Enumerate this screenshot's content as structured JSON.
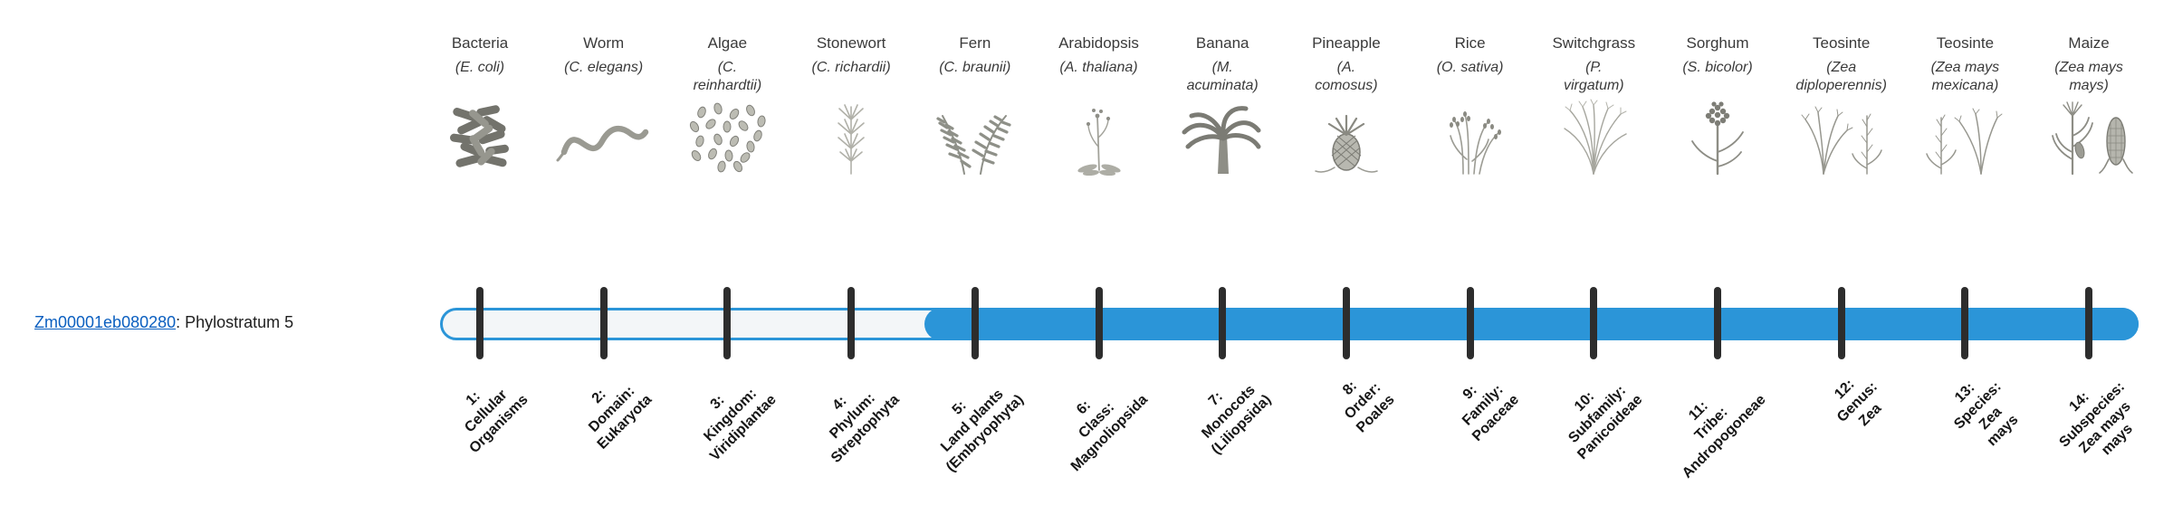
{
  "gene": {
    "id": "Zm00001eb080280",
    "suffix": ": Phylostratum 5"
  },
  "colors": {
    "bar_fill": "#2b95d8",
    "bar_outline": "#2b95d8",
    "bar_hollow": "#f3f6f8",
    "tick": "#2d2d2d",
    "link": "#0b5fc0"
  },
  "bar": {
    "fill_start_percent": 28.5
  },
  "organisms": [
    {
      "name": "Bacteria",
      "sci": "(E. coli)",
      "stratum": "1:\nCellular\nOrganisms",
      "icon": "bacteria"
    },
    {
      "name": "Worm",
      "sci": "(C. elegans)",
      "stratum": "2:\nDomain:\nEukaryota",
      "icon": "worm"
    },
    {
      "name": "Algae",
      "sci": "(C.\nreinhardtii)",
      "stratum": "3:\nKingdom:\nViridiplantae",
      "icon": "algae"
    },
    {
      "name": "Stonewort",
      "sci": "(C. richardii)",
      "stratum": "4:\nPhylum:\nStreptophyta",
      "icon": "stonewort"
    },
    {
      "name": "Fern",
      "sci": "(C. braunii)",
      "stratum": "5:\nLand plants\n(Embryophyta)",
      "icon": "fern"
    },
    {
      "name": "Arabidopsis",
      "sci": "(A. thaliana)",
      "stratum": "6:\nClass:\nMagnoliopsida",
      "icon": "arabidopsis"
    },
    {
      "name": "Banana",
      "sci": "(M.\nacuminata)",
      "stratum": "7:\nMonocots\n(Liliopsida)",
      "icon": "banana"
    },
    {
      "name": "Pineapple",
      "sci": "(A.\ncomosus)",
      "stratum": "8:\nOrder:\nPoales",
      "icon": "pineapple"
    },
    {
      "name": "Rice",
      "sci": "(O. sativa)",
      "stratum": "9:\nFamily:\nPoaceae",
      "icon": "rice"
    },
    {
      "name": "Switchgrass",
      "sci": "(P.\nvirgatum)",
      "stratum": "10:\nSubfamily:\nPanicoideae",
      "icon": "switchgrass"
    },
    {
      "name": "Sorghum",
      "sci": "(S. bicolor)",
      "stratum": "11:\nTribe:\nAndropogoneae",
      "icon": "sorghum"
    },
    {
      "name": "Teosinte",
      "sci": "(Zea\ndiploperennis)",
      "stratum": "12:\nGenus:\nZea",
      "icon": "teosinte-diploperennis"
    },
    {
      "name": "Teosinte",
      "sci": "(Zea mays\nmexicana)",
      "stratum": "13:\nSpecies:\nZea\nmays",
      "icon": "teosinte-mexicana"
    },
    {
      "name": "Maize",
      "sci": "(Zea mays\nmays)",
      "stratum": "14:\nSubspecies:\nZea mays\nmays",
      "icon": "maize"
    }
  ],
  "chart_data": {
    "type": "bar",
    "title": "",
    "series_label": "Zm00001eb080280: Phylostratum 5",
    "gene": "Zm00001eb080280",
    "phylostratum": 5,
    "categories": [
      "1: Cellular Organisms",
      "2: Domain: Eukaryota",
      "3: Kingdom: Viridiplantae",
      "4: Phylum: Streptophyta",
      "5: Land plants (Embryophyta)",
      "6: Class: Magnoliopsida",
      "7: Monocots (Liliopsida)",
      "8: Order: Poales",
      "9: Family: Poaceae",
      "10: Subfamily: Panicoideae",
      "11: Tribe: Andropogoneae",
      "12: Genus: Zea",
      "13: Species: Zea mays",
      "14: Subspecies: Zea mays mays"
    ],
    "organisms": [
      "Bacteria (E. coli)",
      "Worm (C. elegans)",
      "Algae (C. reinhardtii)",
      "Stonewort (C. richardii)",
      "Fern (C. braunii)",
      "Arabidopsis (A. thaliana)",
      "Banana (M. acuminata)",
      "Pineapple (A. comosus)",
      "Rice (O. sativa)",
      "Switchgrass (P. virgatum)",
      "Sorghum (S. bicolor)",
      "Teosinte (Zea diploperennis)",
      "Teosinte (Zea mays mexicana)",
      "Maize (Zea mays mays)"
    ],
    "values": [
      0,
      0,
      0,
      0,
      1,
      1,
      1,
      1,
      1,
      1,
      1,
      1,
      1,
      1
    ]
  }
}
